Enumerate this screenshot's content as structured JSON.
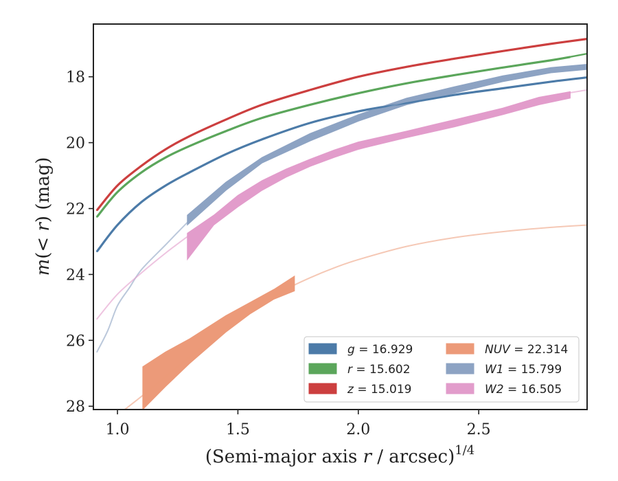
{
  "chart_data": {
    "type": "line",
    "title": "",
    "xlabel": "(Semi-major axis r / arcsec)",
    "xlabel_parts": {
      "pre": "(Semi-major axis ",
      "var": "r",
      "post": " / arcsec)",
      "sup": "1/4"
    },
    "ylabel": "m(< r) (mag)",
    "ylabel_parts": {
      "var": "m",
      "open": "(",
      "lt": "< ",
      "var2": "r",
      "close": ") (mag)"
    },
    "xlim": [
      0.9,
      2.95
    ],
    "ylim": [
      28.1,
      16.4
    ],
    "y_inverted": true,
    "grid": false,
    "legend_position": "lower-right",
    "x_ticks": [
      1.0,
      1.5,
      2.0,
      2.5
    ],
    "x_tick_labels": [
      "1.0",
      "1.5",
      "2.0",
      "2.5"
    ],
    "y_ticks": [
      18,
      20,
      22,
      24,
      26,
      28
    ],
    "y_tick_labels": [
      "18",
      "20",
      "22",
      "24",
      "26",
      "28"
    ],
    "legend": [
      {
        "var": "g",
        "text": " = 16.929",
        "color": "#4c7ba8"
      },
      {
        "var": "r",
        "text": " = 15.602",
        "color": "#5ba65b"
      },
      {
        "var": "z",
        "text": " = 15.019",
        "color": "#cc3f3f"
      },
      {
        "var": "NUV",
        "text": " = 22.314",
        "color": "#ec9a79"
      },
      {
        "var": "W1",
        "text": " = 15.799",
        "color": "#8da3c3"
      },
      {
        "var": "W2",
        "text": " = 16.505",
        "color": "#e29ccb"
      }
    ],
    "series": [
      {
        "name": "g",
        "color": "#4c7ba8",
        "model_opacity": 1.0,
        "band_width": 0.06,
        "model": [
          [
            0.915,
            23.3
          ],
          [
            1.0,
            22.5
          ],
          [
            1.1,
            21.8
          ],
          [
            1.2,
            21.3
          ],
          [
            1.3,
            20.9
          ],
          [
            1.45,
            20.35
          ],
          [
            1.6,
            19.9
          ],
          [
            1.8,
            19.4
          ],
          [
            2.0,
            19.05
          ],
          [
            2.2,
            18.8
          ],
          [
            2.4,
            18.55
          ],
          [
            2.6,
            18.35
          ],
          [
            2.8,
            18.15
          ],
          [
            2.95,
            18.02
          ]
        ],
        "band": [
          [
            0.915,
            23.3
          ],
          [
            1.0,
            22.5
          ],
          [
            1.1,
            21.8
          ],
          [
            1.2,
            21.3
          ],
          [
            1.3,
            20.9
          ],
          [
            1.45,
            20.35
          ],
          [
            1.6,
            19.9
          ],
          [
            1.8,
            19.4
          ],
          [
            2.0,
            19.05
          ],
          [
            2.2,
            18.8
          ],
          [
            2.4,
            18.55
          ],
          [
            2.6,
            18.35
          ],
          [
            2.8,
            18.15
          ],
          [
            2.95,
            18.02
          ]
        ]
      },
      {
        "name": "r",
        "color": "#5ba65b",
        "model_opacity": 1.0,
        "band_width": 0.06,
        "model": [
          [
            0.915,
            22.25
          ],
          [
            1.0,
            21.5
          ],
          [
            1.1,
            20.9
          ],
          [
            1.2,
            20.45
          ],
          [
            1.3,
            20.1
          ],
          [
            1.45,
            19.65
          ],
          [
            1.6,
            19.25
          ],
          [
            1.8,
            18.85
          ],
          [
            2.0,
            18.5
          ],
          [
            2.2,
            18.2
          ],
          [
            2.4,
            17.95
          ],
          [
            2.6,
            17.72
          ],
          [
            2.8,
            17.5
          ],
          [
            2.95,
            17.3
          ]
        ],
        "band": [
          [
            0.915,
            22.25
          ],
          [
            1.0,
            21.5
          ],
          [
            1.1,
            20.9
          ],
          [
            1.2,
            20.45
          ],
          [
            1.3,
            20.1
          ],
          [
            1.45,
            19.65
          ],
          [
            1.6,
            19.25
          ],
          [
            1.8,
            18.85
          ],
          [
            2.0,
            18.5
          ],
          [
            2.2,
            18.2
          ],
          [
            2.4,
            17.95
          ],
          [
            2.6,
            17.72
          ],
          [
            2.8,
            17.5
          ],
          [
            2.88,
            17.4
          ]
        ]
      },
      {
        "name": "z",
        "color": "#cc3f3f",
        "model_opacity": 1.0,
        "band_width": 0.06,
        "model": [
          [
            0.915,
            22.05
          ],
          [
            1.0,
            21.3
          ],
          [
            1.1,
            20.7
          ],
          [
            1.2,
            20.2
          ],
          [
            1.3,
            19.8
          ],
          [
            1.45,
            19.3
          ],
          [
            1.6,
            18.85
          ],
          [
            1.8,
            18.4
          ],
          [
            2.0,
            18.0
          ],
          [
            2.2,
            17.7
          ],
          [
            2.4,
            17.45
          ],
          [
            2.6,
            17.22
          ],
          [
            2.8,
            17.0
          ],
          [
            2.95,
            16.85
          ]
        ],
        "band": [
          [
            0.915,
            22.05
          ],
          [
            1.0,
            21.3
          ],
          [
            1.1,
            20.7
          ],
          [
            1.2,
            20.2
          ],
          [
            1.3,
            19.8
          ],
          [
            1.45,
            19.3
          ],
          [
            1.6,
            18.85
          ],
          [
            1.8,
            18.4
          ],
          [
            2.0,
            18.0
          ],
          [
            2.2,
            17.7
          ],
          [
            2.4,
            17.45
          ],
          [
            2.6,
            17.22
          ],
          [
            2.8,
            17.0
          ],
          [
            2.95,
            16.85
          ]
        ]
      },
      {
        "name": "NUV",
        "color": "#ec9a79",
        "model_opacity": 0.55,
        "model": [
          [
            1.03,
            28.1
          ],
          [
            1.1,
            27.7
          ],
          [
            1.2,
            27.1
          ],
          [
            1.3,
            26.5
          ],
          [
            1.4,
            25.95
          ],
          [
            1.5,
            25.4
          ],
          [
            1.6,
            24.9
          ],
          [
            1.7,
            24.45
          ],
          [
            1.8,
            24.1
          ],
          [
            1.9,
            23.8
          ],
          [
            2.0,
            23.55
          ],
          [
            2.2,
            23.15
          ],
          [
            2.4,
            22.88
          ],
          [
            2.6,
            22.7
          ],
          [
            2.8,
            22.57
          ],
          [
            2.95,
            22.5
          ]
        ],
        "band_upper": [
          [
            1.105,
            26.8
          ],
          [
            1.2,
            26.35
          ],
          [
            1.3,
            25.95
          ],
          [
            1.45,
            25.25
          ],
          [
            1.55,
            24.85
          ],
          [
            1.65,
            24.45
          ],
          [
            1.735,
            24.05
          ]
        ],
        "band_lower": [
          [
            1.105,
            28.1
          ],
          [
            1.2,
            27.4
          ],
          [
            1.3,
            26.7
          ],
          [
            1.45,
            25.75
          ],
          [
            1.55,
            25.2
          ],
          [
            1.65,
            24.75
          ],
          [
            1.735,
            24.5
          ]
        ]
      },
      {
        "name": "W1",
        "color": "#8da3c3",
        "model_opacity": 0.6,
        "model": [
          [
            0.915,
            26.35
          ],
          [
            0.96,
            25.7
          ],
          [
            1.0,
            24.95
          ],
          [
            1.05,
            24.4
          ],
          [
            1.1,
            23.85
          ],
          [
            1.2,
            23.1
          ],
          [
            1.3,
            22.35
          ],
          [
            1.45,
            21.3
          ],
          [
            1.6,
            20.55
          ],
          [
            1.8,
            19.85
          ],
          [
            2.0,
            19.25
          ],
          [
            2.2,
            18.75
          ],
          [
            2.4,
            18.4
          ],
          [
            2.6,
            18.05
          ],
          [
            2.8,
            17.8
          ],
          [
            2.95,
            17.7
          ]
        ],
        "band_upper": [
          [
            1.29,
            22.2
          ],
          [
            1.45,
            21.2
          ],
          [
            1.6,
            20.45
          ],
          [
            1.8,
            19.72
          ],
          [
            2.0,
            19.15
          ],
          [
            2.2,
            18.65
          ],
          [
            2.4,
            18.3
          ],
          [
            2.6,
            17.97
          ],
          [
            2.8,
            17.72
          ],
          [
            2.95,
            17.62
          ]
        ],
        "band_lower": [
          [
            1.29,
            22.5
          ],
          [
            1.45,
            21.45
          ],
          [
            1.6,
            20.62
          ],
          [
            1.8,
            19.95
          ],
          [
            2.0,
            19.35
          ],
          [
            2.2,
            18.85
          ],
          [
            2.4,
            18.5
          ],
          [
            2.6,
            18.15
          ],
          [
            2.8,
            17.88
          ],
          [
            2.95,
            17.78
          ]
        ]
      },
      {
        "name": "W2",
        "color": "#e29ccb",
        "model_opacity": 0.6,
        "model": [
          [
            0.915,
            25.35
          ],
          [
            1.0,
            24.6
          ],
          [
            1.1,
            23.95
          ],
          [
            1.2,
            23.35
          ],
          [
            1.3,
            22.8
          ],
          [
            1.45,
            22.0
          ],
          [
            1.6,
            21.35
          ],
          [
            1.8,
            20.7
          ],
          [
            2.0,
            20.2
          ],
          [
            2.2,
            19.8
          ],
          [
            2.4,
            19.4
          ],
          [
            2.6,
            19.0
          ],
          [
            2.8,
            18.6
          ],
          [
            2.95,
            18.4
          ]
        ],
        "band_upper": [
          [
            1.29,
            22.75
          ],
          [
            1.4,
            22.2
          ],
          [
            1.5,
            21.6
          ],
          [
            1.6,
            21.15
          ],
          [
            1.7,
            20.8
          ],
          [
            1.8,
            20.5
          ],
          [
            1.9,
            20.22
          ],
          [
            2.0,
            19.98
          ],
          [
            2.2,
            19.65
          ],
          [
            2.4,
            19.3
          ],
          [
            2.6,
            18.95
          ],
          [
            2.75,
            18.62
          ],
          [
            2.88,
            18.45
          ]
        ],
        "band_lower": [
          [
            1.29,
            23.55
          ],
          [
            1.4,
            22.5
          ],
          [
            1.5,
            21.95
          ],
          [
            1.6,
            21.45
          ],
          [
            1.7,
            21.05
          ],
          [
            1.8,
            20.72
          ],
          [
            1.9,
            20.45
          ],
          [
            2.0,
            20.2
          ],
          [
            2.2,
            19.85
          ],
          [
            2.4,
            19.52
          ],
          [
            2.6,
            19.15
          ],
          [
            2.75,
            18.85
          ],
          [
            2.88,
            18.65
          ]
        ]
      }
    ]
  }
}
